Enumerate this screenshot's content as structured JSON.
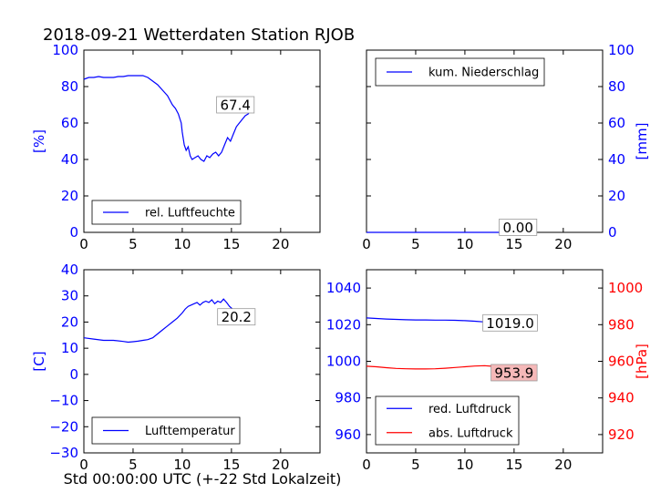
{
  "page": {
    "title": "2018-09-21 Wetterdaten Station RJOB",
    "xlabel": "Std 00:00:00 UTC (+-22 Std Lokalzeit)"
  },
  "colors": {
    "blue": "#0000ff",
    "red": "#ff0000",
    "annot_bg_red": "#f5b8b8"
  },
  "chart_data": [
    {
      "type": "line",
      "panel": "humidity",
      "xlim": [
        0,
        24
      ],
      "xticks": [
        0,
        5,
        10,
        15,
        20
      ],
      "ylim": [
        0,
        100
      ],
      "yticks": [
        0,
        20,
        40,
        60,
        80,
        100
      ],
      "ylabel": "[%]",
      "ylabel_side": "left",
      "ylabel_color": "#0000ff",
      "legend": "bottom-left",
      "series": [
        {
          "name": "rel. Luftfeuchte",
          "color": "#0000ff",
          "x": [
            0,
            0.5,
            1,
            1.5,
            2,
            2.5,
            3,
            3.5,
            4,
            4.5,
            5,
            5.5,
            6,
            6.5,
            7,
            7.5,
            8,
            8.5,
            9,
            9.3,
            9.6,
            9.9,
            10,
            10.2,
            10.4,
            10.6,
            10.8,
            11,
            11.3,
            11.6,
            11.9,
            12.2,
            12.5,
            12.8,
            13.1,
            13.4,
            13.7,
            14,
            14.3,
            14.6,
            14.9,
            15.2,
            15.5,
            15.8,
            16.1,
            16.4,
            16.7,
            17
          ],
          "y": [
            84,
            85,
            85,
            85.5,
            85,
            85,
            85,
            85.5,
            85.5,
            86,
            86,
            86,
            86,
            85,
            83,
            81,
            78,
            75,
            70,
            68,
            65,
            60,
            55,
            48,
            45,
            47,
            42,
            40,
            41,
            42,
            40,
            39,
            42,
            41,
            43,
            44,
            42,
            44,
            48,
            52,
            50,
            54,
            58,
            60,
            62,
            64,
            65,
            67.4
          ]
        }
      ],
      "annotation": {
        "text": "67.4",
        "x": 15.4,
        "y": 70
      }
    },
    {
      "type": "line",
      "panel": "precipitation",
      "xlim": [
        0,
        24
      ],
      "xticks": [
        0,
        5,
        10,
        15,
        20
      ],
      "ylim": [
        0,
        100
      ],
      "yticks": [
        0,
        20,
        40,
        60,
        80,
        100
      ],
      "ylabel": "[mm]",
      "ylabel_side": "right",
      "ylabel_color": "#0000ff",
      "legend": "top-left",
      "series": [
        {
          "name": "kum. Niederschlag",
          "color": "#0000ff",
          "x": [
            0,
            17
          ],
          "y": [
            0,
            0
          ]
        }
      ],
      "annotation": {
        "text": "0.00",
        "x": 15.4,
        "y": 2.8
      }
    },
    {
      "type": "line",
      "panel": "temperature",
      "xlim": [
        0,
        24
      ],
      "xticks": [
        0,
        5,
        10,
        15,
        20
      ],
      "ylim": [
        -30,
        40
      ],
      "yticks": [
        -30,
        -20,
        -10,
        0,
        10,
        20,
        30,
        40
      ],
      "ylabel": "[C]",
      "ylabel_side": "left",
      "ylabel_color": "#0000ff",
      "legend": "bottom-left",
      "series": [
        {
          "name": "Lufttemperatur",
          "color": "#0000ff",
          "x": [
            0,
            1,
            2,
            3,
            4,
            4.5,
            5,
            5.5,
            6,
            6.5,
            7,
            7.5,
            8,
            8.5,
            9,
            9.5,
            10,
            10.3,
            10.6,
            10.9,
            11.2,
            11.5,
            11.8,
            12.1,
            12.4,
            12.7,
            13,
            13.3,
            13.6,
            13.9,
            14.2,
            14.5,
            14.8,
            15.1,
            15.5,
            16,
            16.5,
            17
          ],
          "y": [
            14,
            13.5,
            13,
            13,
            12.6,
            12.3,
            12.5,
            12.7,
            13,
            13.3,
            14,
            15.5,
            17,
            18.5,
            20,
            21.5,
            23.5,
            25,
            26,
            26.5,
            27,
            27.5,
            26.5,
            27.5,
            28,
            27.5,
            28.5,
            27,
            28,
            27.5,
            28.8,
            27.5,
            26,
            25,
            23,
            22,
            21,
            20.2
          ]
        }
      ],
      "annotation": {
        "text": "20.2",
        "x": 15.5,
        "y": 22
      }
    },
    {
      "type": "line",
      "panel": "pressure",
      "xlim": [
        0,
        24
      ],
      "xticks": [
        0,
        5,
        10,
        15,
        20
      ],
      "ylim": [
        950,
        1050
      ],
      "yticks": [
        960,
        980,
        1000,
        1020,
        1040
      ],
      "ylim_right": [
        910,
        1010
      ],
      "yticks_right": [
        920,
        940,
        960,
        980,
        1000
      ],
      "ylabel": "[hPa]",
      "ylabel_side": "right",
      "ylabel_color": "#ff0000",
      "legend": "bottom-left",
      "series": [
        {
          "name": "red. Luftdruck",
          "color": "#0000ff",
          "axis": "left",
          "x": [
            0,
            1,
            2,
            3,
            4,
            5,
            6,
            7,
            8,
            9,
            10,
            11,
            12,
            13,
            14,
            15,
            16,
            17
          ],
          "y": [
            1023.7,
            1023.4,
            1023.1,
            1022.9,
            1022.7,
            1022.6,
            1022.6,
            1022.5,
            1022.5,
            1022.4,
            1022.2,
            1021.9,
            1021.5,
            1021.1,
            1020.6,
            1020.1,
            1019.6,
            1019.0
          ]
        },
        {
          "name": "abs. Luftdruck",
          "color": "#ff0000",
          "axis": "right",
          "x": [
            0,
            1,
            2,
            3,
            4,
            5,
            6,
            7,
            8,
            9,
            10,
            11,
            12,
            13,
            14,
            15,
            16,
            17
          ],
          "y": [
            957.3,
            957.0,
            956.5,
            956.1,
            955.9,
            955.8,
            955.8,
            955.9,
            956.2,
            956.6,
            957.0,
            957.4,
            957.6,
            957.2,
            956.6,
            955.9,
            954.9,
            953.9
          ]
        }
      ],
      "annotations": [
        {
          "text": "1019.0",
          "x": 14.6,
          "y": 1021,
          "axis": "left"
        },
        {
          "text": "953.9",
          "x": 15.0,
          "y": 953.8,
          "axis": "right",
          "bg": "#f5b8b8"
        }
      ]
    }
  ]
}
